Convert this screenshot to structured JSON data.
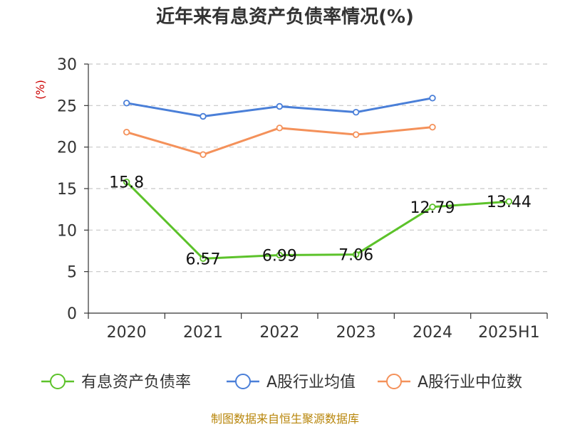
{
  "chart_data": {
    "type": "line",
    "title": "近年来有息资产负债率情况(%)",
    "y_unit": "(%)",
    "categories": [
      "2020",
      "2021",
      "2022",
      "2023",
      "2024",
      "2025H1"
    ],
    "ylim": [
      0,
      30
    ],
    "y_ticks": [
      "0",
      "5",
      "10",
      "15",
      "20",
      "25",
      "30"
    ],
    "grid": true,
    "legend_position": "bottom",
    "series": [
      {
        "name": "有息资产负债率",
        "color": "#5cc22a",
        "values": [
          15.8,
          6.57,
          6.99,
          7.06,
          12.79,
          13.44
        ],
        "labels": [
          "15.8",
          "6.57",
          "6.99",
          "7.06",
          "12.79",
          "13.44"
        ]
      },
      {
        "name": "A股行业均值",
        "color": "#4a7fd8",
        "values": [
          25.3,
          23.7,
          24.9,
          24.2,
          25.9,
          null
        ]
      },
      {
        "name": "A股行业中位数",
        "color": "#f4915a",
        "values": [
          21.8,
          19.1,
          22.3,
          21.5,
          22.4,
          null
        ]
      }
    ]
  },
  "source": "制图数据来自恒生聚源数据库"
}
